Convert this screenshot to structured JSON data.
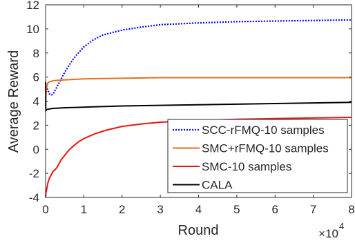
{
  "chart_data": {
    "type": "line",
    "title": "",
    "xlabel": "Round",
    "ylabel": "Average Reward",
    "x_exponent_label": "×10",
    "x_exponent_power": "4",
    "xlim": [
      0,
      8
    ],
    "ylim": [
      -4,
      12
    ],
    "xticks": [
      0,
      1,
      2,
      3,
      4,
      5,
      6,
      7,
      8
    ],
    "yticks": [
      -4,
      -2,
      0,
      2,
      4,
      6,
      8,
      10,
      12
    ],
    "xtick_labels": [
      "0",
      "1",
      "2",
      "3",
      "4",
      "5",
      "6",
      "7",
      "8"
    ],
    "ytick_labels": [
      "-4",
      "-2",
      "0",
      "2",
      "4",
      "6",
      "8",
      "10",
      "12"
    ],
    "grid": false,
    "legend_position": "bottom-right",
    "series": [
      {
        "name": "SCC-rFMQ-10 samples",
        "color": "#0000ff",
        "style": "dotted",
        "points": [
          [
            0.0,
            5.5
          ],
          [
            0.02,
            5.3
          ],
          [
            0.06,
            4.9
          ],
          [
            0.1,
            4.6
          ],
          [
            0.15,
            4.5
          ],
          [
            0.2,
            4.6
          ],
          [
            0.25,
            4.9
          ],
          [
            0.3,
            5.2
          ],
          [
            0.4,
            5.8
          ],
          [
            0.5,
            6.4
          ],
          [
            0.6,
            6.9
          ],
          [
            0.7,
            7.4
          ],
          [
            0.8,
            7.8
          ],
          [
            1.0,
            8.5
          ],
          [
            1.25,
            9.1
          ],
          [
            1.5,
            9.5
          ],
          [
            2.0,
            9.9
          ],
          [
            2.5,
            10.15
          ],
          [
            3.0,
            10.35
          ],
          [
            4.0,
            10.5
          ],
          [
            5.0,
            10.6
          ],
          [
            6.0,
            10.65
          ],
          [
            7.0,
            10.7
          ],
          [
            8.0,
            10.75
          ]
        ]
      },
      {
        "name": "SMC+rFMQ-10 samples",
        "color": "#e07020",
        "style": "solid",
        "points": [
          [
            0.0,
            3.5
          ],
          [
            0.01,
            4.6
          ],
          [
            0.03,
            5.2
          ],
          [
            0.06,
            5.5
          ],
          [
            0.1,
            5.6
          ],
          [
            0.2,
            5.7
          ],
          [
            0.4,
            5.75
          ],
          [
            0.7,
            5.8
          ],
          [
            1.0,
            5.85
          ],
          [
            2.0,
            5.9
          ],
          [
            3.0,
            5.95
          ],
          [
            4.0,
            5.95
          ],
          [
            6.0,
            5.95
          ],
          [
            8.0,
            5.95
          ]
        ]
      },
      {
        "name": "SMC-10 samples",
        "color": "#ee1111",
        "style": "solid",
        "points": [
          [
            0.0,
            -4.0
          ],
          [
            0.01,
            -3.6
          ],
          [
            0.03,
            -3.3
          ],
          [
            0.06,
            -2.8
          ],
          [
            0.1,
            -2.4
          ],
          [
            0.15,
            -2.1
          ],
          [
            0.2,
            -1.8
          ],
          [
            0.25,
            -1.7
          ],
          [
            0.3,
            -1.5
          ],
          [
            0.35,
            -1.2
          ],
          [
            0.4,
            -0.9
          ],
          [
            0.5,
            -0.5
          ],
          [
            0.6,
            -0.1
          ],
          [
            0.7,
            0.2
          ],
          [
            0.85,
            0.6
          ],
          [
            1.0,
            0.9
          ],
          [
            1.3,
            1.3
          ],
          [
            1.6,
            1.6
          ],
          [
            2.0,
            1.9
          ],
          [
            2.5,
            2.1
          ],
          [
            3.0,
            2.25
          ],
          [
            4.0,
            2.4
          ],
          [
            5.0,
            2.5
          ],
          [
            6.0,
            2.55
          ],
          [
            7.0,
            2.6
          ],
          [
            8.0,
            2.65
          ]
        ]
      },
      {
        "name": "CALA",
        "color": "#000000",
        "style": "solid",
        "points": [
          [
            0.0,
            5.6
          ],
          [
            0.005,
            3.2
          ],
          [
            0.03,
            3.3
          ],
          [
            0.1,
            3.35
          ],
          [
            0.2,
            3.4
          ],
          [
            0.5,
            3.45
          ],
          [
            1.0,
            3.5
          ],
          [
            2.0,
            3.6
          ],
          [
            3.0,
            3.65
          ],
          [
            4.0,
            3.7
          ],
          [
            5.0,
            3.75
          ],
          [
            6.0,
            3.8
          ],
          [
            7.0,
            3.85
          ],
          [
            8.0,
            3.9
          ]
        ]
      }
    ]
  }
}
